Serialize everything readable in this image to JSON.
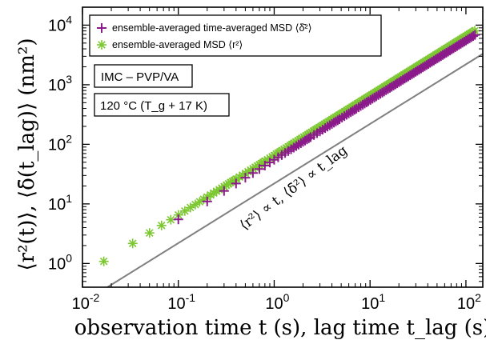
{
  "chart_data": {
    "type": "scatter",
    "xscale": "log",
    "yscale": "log",
    "xlim": [
      0.01,
      150
    ],
    "ylim": [
      0.4,
      20000
    ],
    "x_ticks": [
      {
        "value": 0.01,
        "mantissa": "10",
        "exp": "-2"
      },
      {
        "value": 0.1,
        "mantissa": "10",
        "exp": "-1"
      },
      {
        "value": 1,
        "mantissa": "10",
        "exp": "0"
      },
      {
        "value": 10,
        "mantissa": "10",
        "exp": "1"
      },
      {
        "value": 100,
        "mantissa": "10",
        "exp": "2"
      }
    ],
    "y_ticks": [
      {
        "value": 1,
        "mantissa": "10",
        "exp": "0"
      },
      {
        "value": 10,
        "mantissa": "10",
        "exp": "1"
      },
      {
        "value": 100,
        "mantissa": "10",
        "exp": "2"
      },
      {
        "value": 1000,
        "mantissa": "10",
        "exp": "3"
      },
      {
        "value": 10000,
        "mantissa": "10",
        "exp": "4"
      }
    ],
    "xlabel": "observation time t (s), lag time t_lag (s)",
    "ylabel": "⟨r²(t)⟩, ⟨δ̄(t_lag)⟩ (nm²)",
    "series": [
      {
        "name": "ensemble-averaged MSD ⟨r²⟩",
        "marker": "asterisk",
        "color": "#7dc832",
        "x_start": 0.0167,
        "x_step": 0.0167,
        "x_end": 125,
        "y_at_x1": 65,
        "slope": 1.0
      },
      {
        "name": "ensemble-averaged time-averaged MSD ⟨δ̄²⟩",
        "marker": "plus",
        "color": "#8b1a8b",
        "x_start": 0.1,
        "x_step": 0.1,
        "x_end": 125,
        "y_at_x1": 55,
        "slope": 1.0
      }
    ],
    "reference_line": {
      "label": "⟨r²⟩ ∝ t, ⟨δ̄²⟩ ∝ t_lag",
      "slope": 1.0,
      "y_at_x1": 22,
      "color": "#808080"
    },
    "legend": {
      "placement": "top-left",
      "entries": [
        {
          "text": "ensemble-averaged time-averaged MSD ⟨δ̄²⟩",
          "marker": "plus",
          "color": "#8b1a8b"
        },
        {
          "text": "ensemble-averaged MSD ⟨r²⟩",
          "marker": "asterisk",
          "color": "#7dc832"
        }
      ]
    },
    "annotations": {
      "material": "IMC – PVP/VA",
      "temperature": "120 °C (T_g + 17 K)"
    }
  }
}
